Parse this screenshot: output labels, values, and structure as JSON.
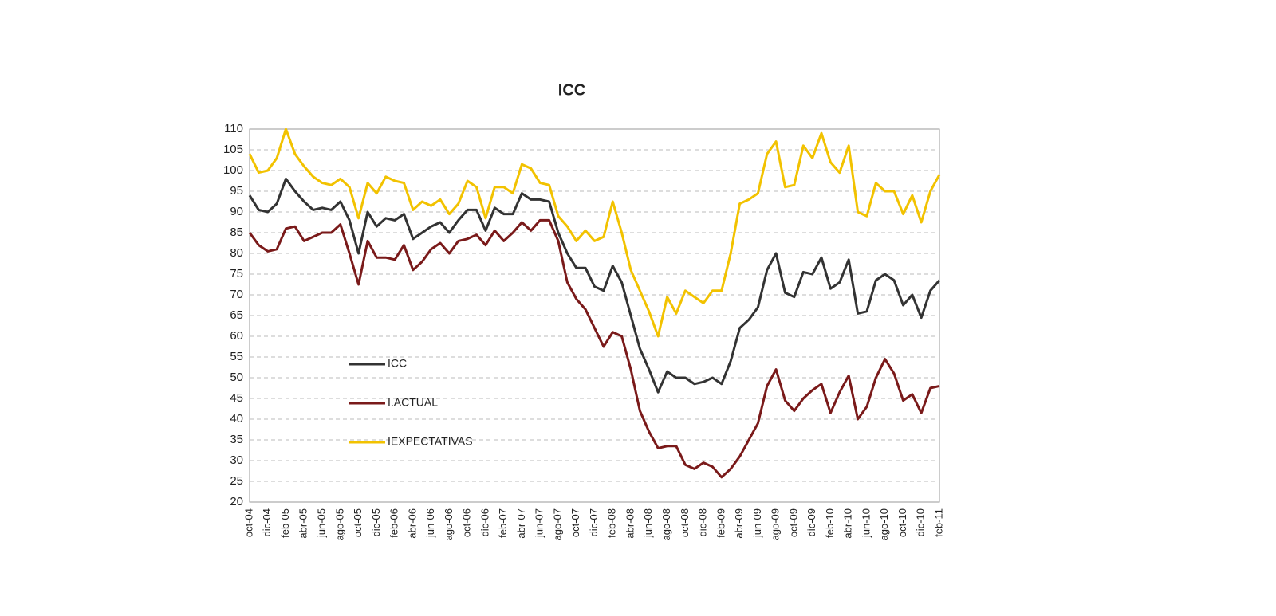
{
  "chart_data": {
    "type": "line",
    "title": "ICC",
    "categories": [
      "oct-04",
      null,
      "dic-04",
      null,
      "feb-05",
      null,
      "abr-05",
      null,
      "jun-05",
      null,
      "ago-05",
      null,
      "oct-05",
      null,
      "dic-05",
      null,
      "feb-06",
      null,
      "abr-06",
      null,
      "jun-06",
      null,
      "ago-06",
      null,
      "oct-06",
      null,
      "dic-06",
      null,
      "feb-07",
      null,
      "abr-07",
      null,
      "jun-07",
      null,
      "ago-07",
      null,
      "oct-07",
      null,
      "dic-07",
      null,
      "feb-08",
      null,
      "abr-08",
      null,
      "jun-08",
      null,
      "ago-08",
      null,
      "oct-08",
      null,
      "dic-08",
      null,
      "feb-09",
      null,
      "abr-09",
      null,
      "jun-09",
      null,
      "ago-09",
      null,
      "oct-09",
      null,
      "dic-09",
      null,
      "feb-10",
      null,
      "abr-10",
      null,
      "jun-10",
      null,
      "ago-10",
      null,
      "oct-10",
      null,
      "dic-10",
      null,
      "feb-11"
    ],
    "series": [
      {
        "name": "ICC",
        "color": "#333333",
        "values": [
          94,
          90.5,
          90,
          92,
          98,
          95,
          92.5,
          90.5,
          91,
          90.5,
          92.5,
          88,
          80,
          90,
          86.5,
          88.5,
          88,
          89.5,
          83.5,
          85,
          86.5,
          87.5,
          85,
          88,
          90.5,
          90.5,
          85.5,
          91,
          89.5,
          89.5,
          94.5,
          93,
          93,
          92.5,
          85,
          80,
          76.5,
          76.5,
          72,
          71,
          77,
          73,
          65,
          57,
          52,
          46.5,
          51.5,
          50,
          50,
          48.5,
          49,
          50,
          48.5,
          54,
          62,
          64,
          67,
          76,
          80,
          70.5,
          69.5,
          75.5,
          75,
          79,
          71.5,
          73,
          78.5,
          65.5,
          66,
          73.5,
          75,
          73.5,
          67.5,
          70,
          64.5,
          71,
          73.5
        ]
      },
      {
        "name": "I.ACTUAL",
        "color": "#7a1a1a",
        "values": [
          85,
          82,
          80.5,
          81,
          86,
          86.5,
          83,
          84,
          85,
          85,
          87,
          80,
          72.5,
          83,
          79,
          79,
          78.5,
          82,
          76,
          78,
          81,
          82.5,
          80,
          83,
          83.5,
          84.5,
          82,
          85.5,
          83,
          85,
          87.5,
          85.5,
          88,
          88,
          83,
          73,
          69,
          66.5,
          62,
          57.5,
          61,
          60,
          52,
          42,
          37,
          33,
          33.5,
          33.5,
          29,
          28,
          29.5,
          28.5,
          26,
          28,
          31,
          35,
          39,
          48,
          52,
          44.5,
          42,
          45,
          47,
          48.5,
          41.5,
          46.5,
          50.5,
          40,
          43,
          50,
          54.5,
          51,
          44.5,
          46,
          41.5,
          47.5,
          48
        ]
      },
      {
        "name": "IEXPECTATIVAS",
        "color": "#f2c200",
        "values": [
          104,
          99.5,
          100,
          103,
          110,
          104,
          101,
          98.5,
          97,
          96.5,
          98,
          96,
          88.5,
          97,
          94.5,
          98.5,
          97.5,
          97,
          90.5,
          92.5,
          91.5,
          93,
          89.5,
          92,
          97.5,
          96,
          88.5,
          96,
          96,
          94.5,
          101.5,
          100.5,
          97,
          96.5,
          89,
          86.5,
          83,
          85.5,
          83,
          84,
          92.5,
          85,
          76,
          71,
          66,
          60,
          69.5,
          65.5,
          71,
          69.5,
          68,
          71,
          71,
          80,
          92,
          93,
          94.5,
          104,
          107,
          96,
          96.5,
          106,
          103,
          109,
          102,
          99.5,
          106,
          90,
          89,
          97,
          95,
          95,
          89.5,
          94,
          87.5,
          95,
          99
        ]
      }
    ],
    "ylim": [
      20,
      110
    ],
    "yticks": [
      20,
      25,
      30,
      35,
      40,
      45,
      50,
      55,
      60,
      65,
      70,
      75,
      80,
      85,
      90,
      95,
      100,
      105,
      110
    ],
    "grid": true,
    "legend": "lower left"
  }
}
